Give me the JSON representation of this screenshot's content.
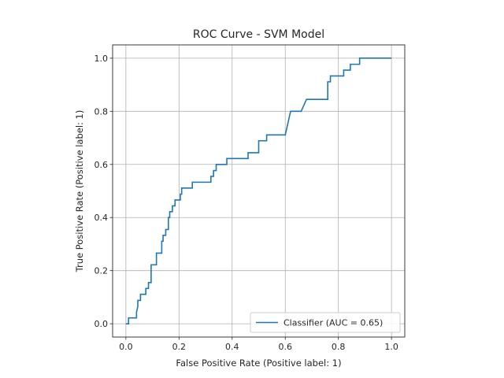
{
  "chart_data": {
    "type": "line",
    "title": "ROC Curve - SVM Model",
    "xlabel": "False Positive Rate (Positive label: 1)",
    "ylabel": "True Positive Rate (Positive label: 1)",
    "xlim": [
      0.0,
      1.0
    ],
    "ylim": [
      0.0,
      1.0
    ],
    "xticks": [
      "0.0",
      "0.2",
      "0.4",
      "0.6",
      "0.8",
      "1.0"
    ],
    "yticks": [
      "0.0",
      "0.2",
      "0.4",
      "0.6",
      "0.8",
      "1.0"
    ],
    "grid": true,
    "legend_position": "lower-right",
    "series": [
      {
        "name": "Classifier (AUC = 0.65)",
        "color": "#1f77b4",
        "x": [
          0.0,
          0.0,
          0.01,
          0.01,
          0.04,
          0.04,
          0.045,
          0.045,
          0.055,
          0.055,
          0.075,
          0.075,
          0.085,
          0.085,
          0.095,
          0.095,
          0.115,
          0.115,
          0.135,
          0.135,
          0.14,
          0.14,
          0.15,
          0.15,
          0.16,
          0.16,
          0.165,
          0.165,
          0.175,
          0.175,
          0.185,
          0.185,
          0.205,
          0.205,
          0.21,
          0.21,
          0.25,
          0.25,
          0.32,
          0.32,
          0.33,
          0.33,
          0.34,
          0.34,
          0.38,
          0.38,
          0.46,
          0.46,
          0.5,
          0.5,
          0.53,
          0.53,
          0.6,
          0.61,
          0.62,
          0.62,
          0.66,
          0.68,
          0.76,
          0.76,
          0.77,
          0.77,
          0.78,
          0.78,
          0.82,
          0.82,
          0.845,
          0.845,
          0.86,
          0.86,
          0.88,
          0.88,
          0.9,
          0.9,
          1.0
        ],
        "y": [
          0.0,
          0.0,
          0.0,
          0.022,
          0.022,
          0.044,
          0.066,
          0.088,
          0.088,
          0.111,
          0.111,
          0.133,
          0.133,
          0.155,
          0.155,
          0.222,
          0.222,
          0.266,
          0.266,
          0.311,
          0.311,
          0.333,
          0.333,
          0.355,
          0.355,
          0.4,
          0.4,
          0.422,
          0.422,
          0.444,
          0.444,
          0.466,
          0.466,
          0.488,
          0.488,
          0.511,
          0.511,
          0.533,
          0.533,
          0.555,
          0.555,
          0.577,
          0.577,
          0.6,
          0.6,
          0.622,
          0.622,
          0.644,
          0.644,
          0.689,
          0.689,
          0.711,
          0.711,
          0.755,
          0.8,
          0.8,
          0.8,
          0.845,
          0.845,
          0.911,
          0.911,
          0.933,
          0.933,
          0.933,
          0.933,
          0.955,
          0.955,
          0.977,
          0.977,
          0.977,
          0.977,
          1.0,
          1.0,
          1.0,
          1.0
        ]
      }
    ]
  }
}
